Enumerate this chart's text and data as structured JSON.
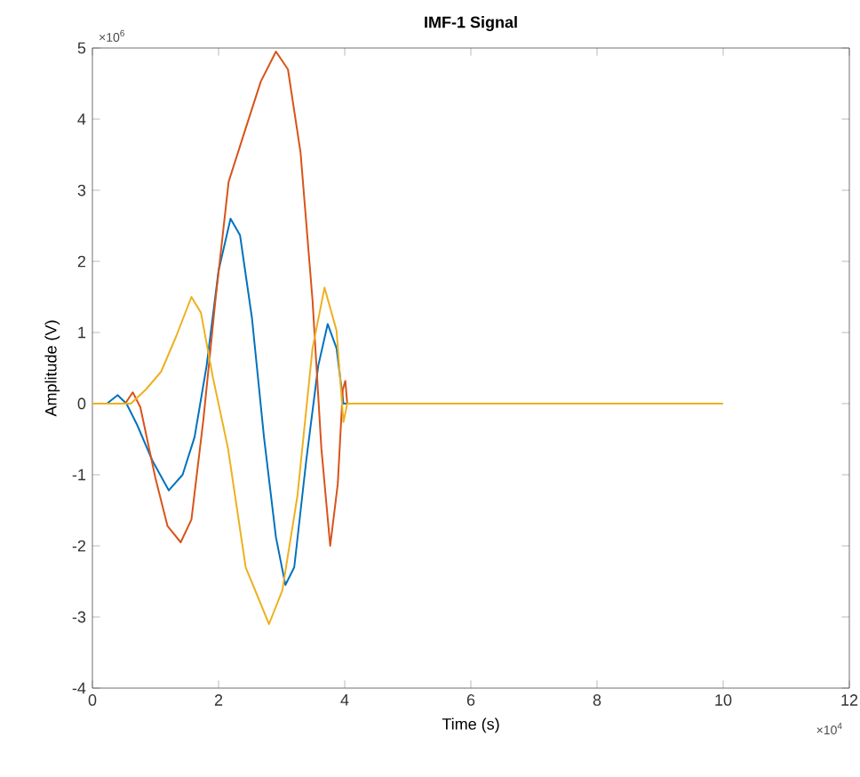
{
  "chart_data": {
    "type": "line",
    "title": "IMF-1 Signal",
    "xlabel": "Time (s)",
    "ylabel": "Amplitude (V)",
    "annotations": [
      "×10$^{6}$",
      "×10$^{4}$"
    ],
    "xlim": [
      0,
      12
    ],
    "ylim": [
      -4,
      5
    ],
    "xticks": [
      0,
      2,
      4,
      6,
      8,
      10,
      12
    ],
    "yticks": [
      -4,
      -3,
      -2,
      -1,
      0,
      1,
      2,
      3,
      4,
      5
    ],
    "grid": false,
    "marker": "none",
    "line_style": "solid",
    "series": [
      {
        "color": "#0072bd",
        "x": [
          0,
          0.23,
          0.4,
          0.54,
          0.71,
          0.95,
          1.21,
          1.43,
          1.62,
          1.81,
          2.0,
          2.19,
          2.34,
          2.53,
          2.72,
          2.91,
          3.06,
          3.2,
          3.39,
          3.58,
          3.73,
          3.87,
          3.98,
          10
        ],
        "values": [
          0,
          0,
          0.12,
          0,
          -0.3,
          -0.8,
          -1.22,
          -1.0,
          -0.47,
          0.53,
          1.87,
          2.6,
          2.37,
          1.2,
          -0.47,
          -1.88,
          -2.55,
          -2.3,
          -0.8,
          0.53,
          1.12,
          0.78,
          0,
          0
        ]
      },
      {
        "color": "#d95319",
        "x": [
          0,
          0.52,
          0.64,
          0.76,
          1.0,
          1.19,
          1.4,
          1.57,
          1.76,
          1.95,
          2.16,
          2.43,
          2.67,
          2.91,
          3.1,
          3.3,
          3.49,
          3.63,
          3.77,
          3.89,
          3.97,
          4.01,
          4.04,
          10
        ],
        "values": [
          0,
          0,
          0.16,
          -0.05,
          -1.05,
          -1.72,
          -1.95,
          -1.63,
          -0.22,
          1.45,
          3.12,
          3.87,
          4.53,
          4.95,
          4.7,
          3.53,
          1.45,
          -0.63,
          -2.0,
          -1.13,
          0.2,
          0.32,
          0,
          0
        ]
      },
      {
        "color": "#edb120",
        "x": [
          0,
          0.61,
          0.85,
          1.09,
          1.33,
          1.57,
          1.72,
          1.91,
          2.15,
          2.43,
          2.8,
          3.01,
          3.25,
          3.49,
          3.68,
          3.87,
          3.98,
          4.04,
          10
        ],
        "values": [
          0,
          0,
          0.2,
          0.45,
          0.95,
          1.5,
          1.28,
          0.37,
          -0.63,
          -2.3,
          -3.1,
          -2.63,
          -1.3,
          0.78,
          1.63,
          1.03,
          -0.26,
          0,
          0
        ]
      }
    ]
  }
}
